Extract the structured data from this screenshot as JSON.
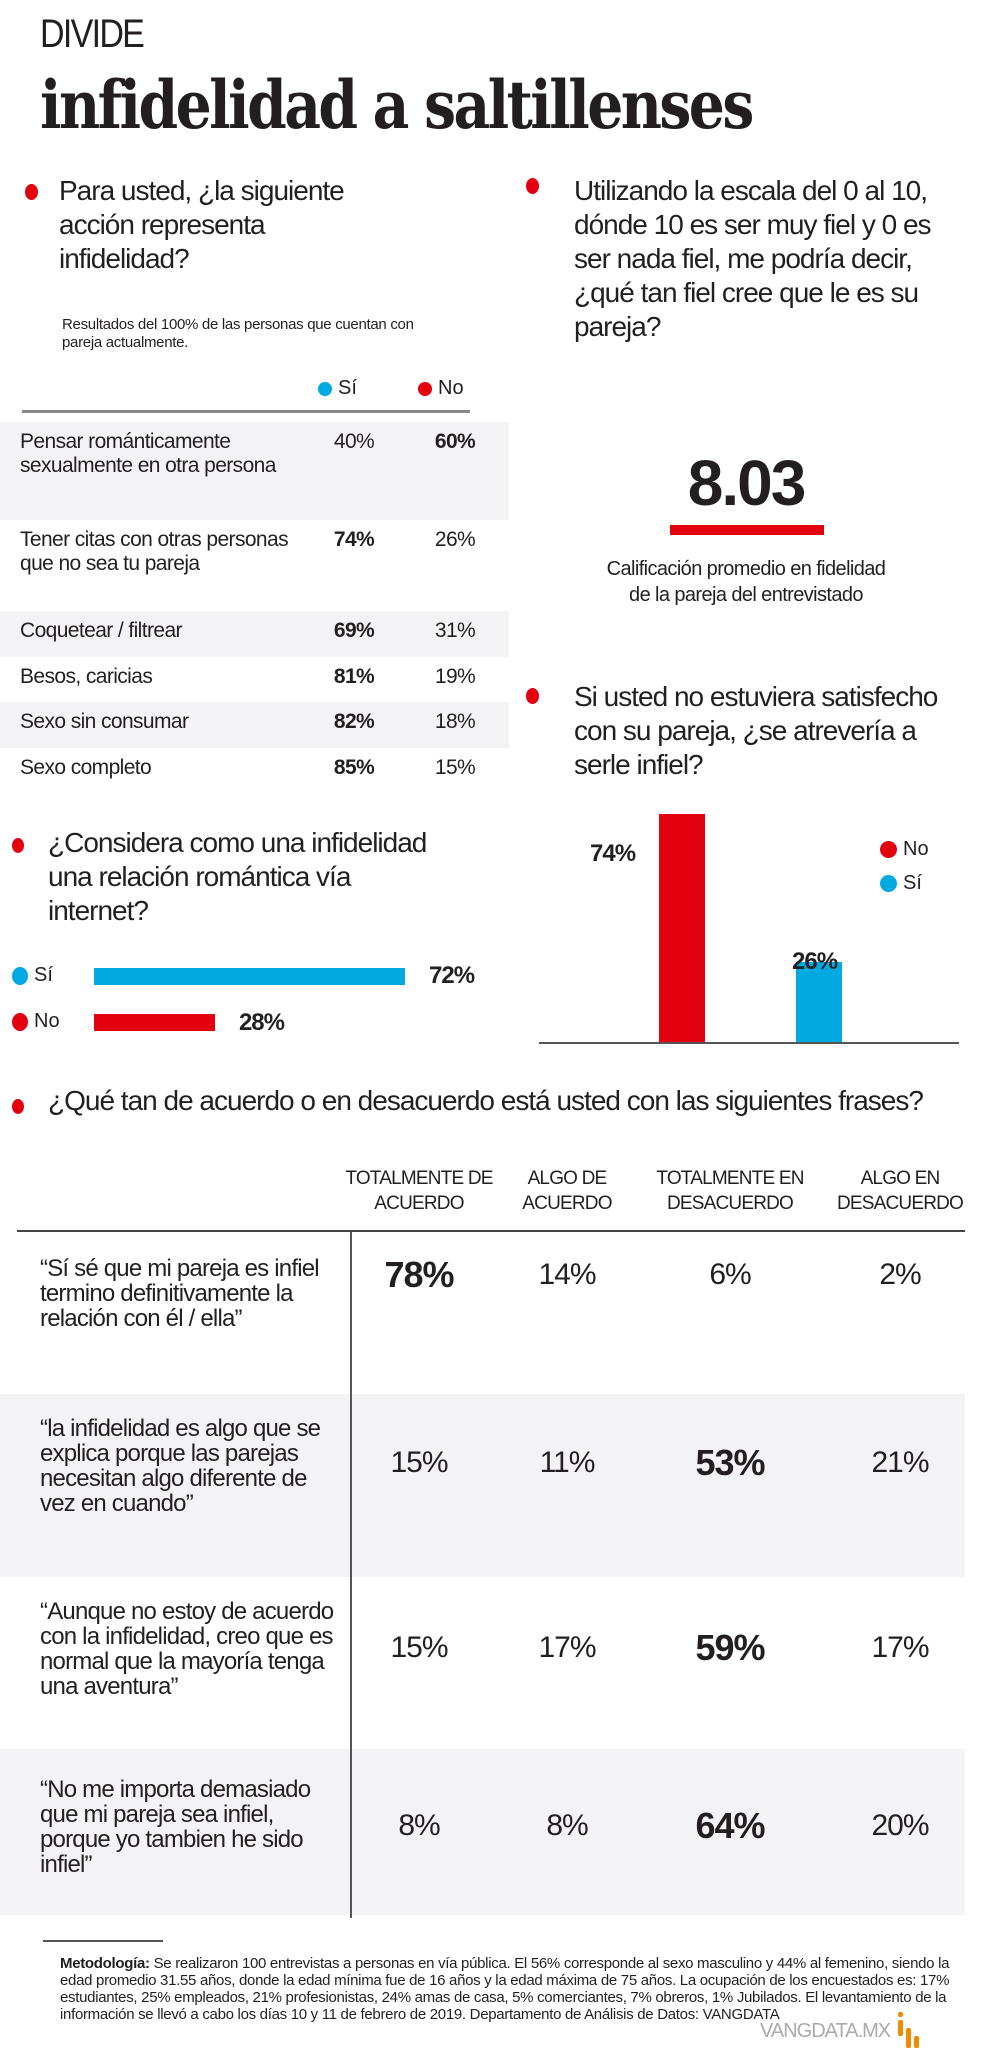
{
  "header": {
    "kicker": "DIVIDE",
    "title": "infidelidad a saltillenses"
  },
  "colors": {
    "red": "#e3000f",
    "blue": "#00a9e0",
    "text": "#231f20",
    "row_bg": "#f3f3f5"
  },
  "q1": {
    "question": "Para usted, ¿la siguiente acción representa infidelidad?",
    "note": "Resultados del 100% de las personas que cuentan con pareja actualmente.",
    "legend_si": "Sí",
    "legend_no": "No",
    "rows": [
      {
        "label": "Pensar románticamente sexualmente en otra persona",
        "si": "40%",
        "no": "60%"
      },
      {
        "label": "Tener citas con otras personas que no sea tu pareja",
        "si": "74%",
        "no": "26%"
      },
      {
        "label": "Coquetear / filtrear",
        "si": "69%",
        "no": "31%"
      },
      {
        "label": "Besos, caricias",
        "si": "81%",
        "no": "19%"
      },
      {
        "label": "Sexo sin consumar",
        "si": "82%",
        "no": "18%"
      },
      {
        "label": "Sexo completo",
        "si": "85%",
        "no": "15%"
      }
    ]
  },
  "q2": {
    "question": "Utilizando la escala del 0 al 10, dónde 10 es ser muy fiel y 0 es ser nada fiel, me podría decir, ¿qué tan fiel cree que le es su pareja?",
    "score": "8.03",
    "caption": "Calificación promedio en fidelidad de la pareja del entrevistado"
  },
  "q3": {
    "question": "Si usted no estuviera satisfecho con su pareja, ¿se atrevería a serle infiel?",
    "legend_no": "No",
    "legend_si": "Sí",
    "no_label": "74%",
    "si_label": "26%"
  },
  "q4": {
    "question": "¿Considera como una infidelidad una relación romántica vía internet?",
    "si_label": "Sí",
    "no_label": "No",
    "si_value": "72%",
    "no_value": "28%"
  },
  "q5": {
    "question": "¿Qué tan de acuerdo o en desacuerdo está usted con las siguientes frases?",
    "columns": [
      "TOTALMENTE DE ACUERDO",
      "ALGO DE ACUERDO",
      "TOTALMENTE EN DESACUERDO",
      "ALGO EN DESACUERDO"
    ],
    "rows": [
      {
        "quote": "“Sí sé que mi pareja es infiel termino definitivamente la relación con él / ella”",
        "values": [
          "78%",
          "14%",
          "6%",
          "2%"
        ]
      },
      {
        "quote": "“la infidelidad es algo que se explica porque las parejas necesitan algo diferente de vez en cuando”",
        "values": [
          "15%",
          "11%",
          "53%",
          "21%"
        ]
      },
      {
        "quote": "“Aunque no estoy de acuerdo con la infidelidad, creo que es normal que la mayoría tenga una aventura”",
        "values": [
          "15%",
          "17%",
          "59%",
          "17%"
        ]
      },
      {
        "quote": "“No me importa demasiado que mi pareja sea infiel, porque yo tambien he sido infiel”",
        "values": [
          "8%",
          "8%",
          "64%",
          "20%"
        ]
      }
    ]
  },
  "footer": {
    "method_label": "Metodología:",
    "method_text": "Se realizaron 100 entrevistas a personas en vía pública. El 56% corresponde al sexo masculino y 44% al femenino, siendo la edad promedio 31.55 años, donde la edad mínima fue de 16 años y la edad máxima de 75 años. La ocupación de los encuestados es: 17% estudiantes, 25% empleados, 21% profesionistas, 24% amas de casa, 5% comerciantes, 7% obreros, 1% Jubilados. El levantamiento de la información se llevó a cabo los días 10 y 11 de febrero de 2019. Departamento de Análisis de Datos: VANGDATA",
    "brand": "VANGDATA.MX"
  },
  "chart_data": [
    {
      "type": "bar",
      "title": "Si usted no estuviera satisfecho con su pareja, ¿se atrevería a serle infiel?",
      "categories": [
        "No",
        "Sí"
      ],
      "values": [
        74,
        26
      ],
      "ylim": [
        0,
        80
      ],
      "legend": "right"
    },
    {
      "type": "bar",
      "orientation": "horizontal",
      "title": "¿Considera como una infidelidad una relación romántica vía internet?",
      "categories": [
        "Sí",
        "No"
      ],
      "values": [
        72,
        28
      ],
      "xlim": [
        0,
        100
      ]
    }
  ]
}
